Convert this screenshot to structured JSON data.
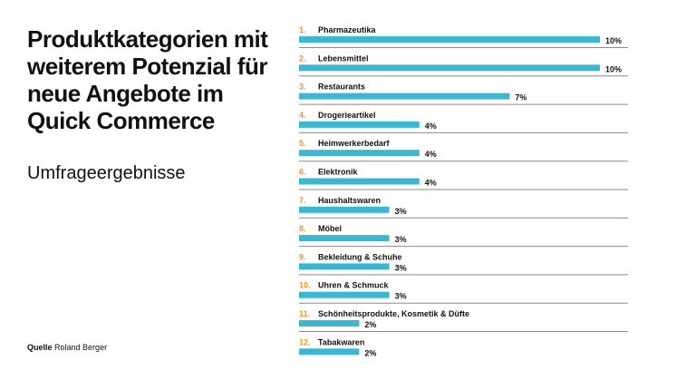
{
  "title": "Produktkategorien mit weiterem Potenzial für neue Angebote im Quick Commerce",
  "subtitle": "Umfrageergebnisse",
  "source": {
    "label": "Quelle",
    "value": "Roland Berger"
  },
  "colors": {
    "bar": "#3cb7d2",
    "rank": "#f0932b",
    "separator": "#8a8a8a",
    "text": "#111111"
  },
  "chart_data": {
    "type": "bar",
    "orientation": "horizontal",
    "title": "Produktkategorien mit weiterem Potenzial für neue Angebote im Quick Commerce",
    "subtitle": "Umfrageergebnisse",
    "unit": "%",
    "xlim": [
      0,
      10
    ],
    "grid": false,
    "ranks": [
      "1.",
      "2.",
      "3.",
      "4.",
      "5.",
      "6.",
      "7.",
      "8.",
      "9.",
      "10.",
      "11.",
      "12."
    ],
    "categories": [
      "Pharmazeutika",
      "Lebensmittel",
      "Restaurants",
      "Drogerieartikel",
      "Heimwerkerbedarf",
      "Elektronik",
      "Haushaltswaren",
      "Möbel",
      "Bekleidung & Schuhe",
      "Uhren & Schmuck",
      "Schönheitsprodukte, Kosmetik & Düfte",
      "Tabakwaren"
    ],
    "values": [
      10,
      10,
      7,
      4,
      4,
      4,
      3,
      3,
      3,
      3,
      2,
      2
    ],
    "labels": [
      "10%",
      "10%",
      "7%",
      "4%",
      "4%",
      "4%",
      "3%",
      "3%",
      "3%",
      "3%",
      "2%",
      "2%"
    ]
  }
}
